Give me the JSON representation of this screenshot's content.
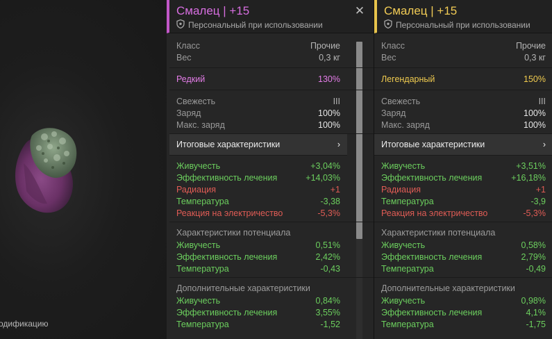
{
  "scene": {
    "label": "одификацию"
  },
  "left_panel": {
    "title": "Смалец | +15",
    "binding": "Персональный при использовании",
    "class_label": "Класс",
    "class_value": "Прочие",
    "weight_label": "Вес",
    "weight_value": "0,3 кг",
    "rarity_label": "Редкий",
    "rarity_value": "130%",
    "freshness_label": "Свежесть",
    "freshness_value": "III",
    "charge_label": "Заряд",
    "charge_value": "100%",
    "max_charge_label": "Макс. заряд",
    "max_charge_value": "100%",
    "final_stats_label": "Итоговые характеристики",
    "final_stats": [
      {
        "label": "Живучесть",
        "value": "+3,04%",
        "color": "green"
      },
      {
        "label": "Эффективность лечения",
        "value": "+14,03%",
        "color": "green"
      },
      {
        "label": "Радиация",
        "value": "+1",
        "color": "red"
      },
      {
        "label": "Температура",
        "value": "-3,38",
        "color": "green"
      },
      {
        "label": "Реакция на электричество",
        "value": "-5,3%",
        "color": "red"
      }
    ],
    "potential_title": "Характеристики потенциала",
    "potential_stats": [
      {
        "label": "Живучесть",
        "value": "0,51%"
      },
      {
        "label": "Эффективность лечения",
        "value": "2,42%"
      },
      {
        "label": "Температура",
        "value": "-0,43"
      }
    ],
    "extra_title": "Дополнительные характеристики",
    "extra_stats": [
      {
        "label": "Живучесть",
        "value": "0,84%"
      },
      {
        "label": "Эффективность лечения",
        "value": "3,55%"
      },
      {
        "label": "Температура",
        "value": "-1,52"
      }
    ]
  },
  "right_panel": {
    "title": "Смалец | +15",
    "binding": "Персональный при использовании",
    "class_label": "Класс",
    "class_value": "Прочие",
    "weight_label": "Вес",
    "weight_value": "0,3 кг",
    "rarity_label": "Легендарный",
    "rarity_value": "150%",
    "freshness_label": "Свежесть",
    "freshness_value": "III",
    "charge_label": "Заряд",
    "charge_value": "100%",
    "max_charge_label": "Макс. заряд",
    "max_charge_value": "100%",
    "final_stats_label": "Итоговые характеристики",
    "final_stats": [
      {
        "label": "Живучесть",
        "value": "+3,51%",
        "color": "green"
      },
      {
        "label": "Эффективность лечения",
        "value": "+16,18%",
        "color": "green"
      },
      {
        "label": "Радиация",
        "value": "+1",
        "color": "red"
      },
      {
        "label": "Температура",
        "value": "-3,9",
        "color": "green"
      },
      {
        "label": "Реакция на электричество",
        "value": "-5,3%",
        "color": "red"
      }
    ],
    "potential_title": "Характеристики потенциала",
    "potential_stats": [
      {
        "label": "Живучесть",
        "value": "0,58%"
      },
      {
        "label": "Эффективность лечения",
        "value": "2,79%"
      },
      {
        "label": "Температура",
        "value": "-0,49"
      }
    ],
    "extra_title": "Дополнительные характеристики",
    "extra_stats": [
      {
        "label": "Живучесть",
        "value": "0,98%"
      },
      {
        "label": "Эффективность лечения",
        "value": "4,1%"
      },
      {
        "label": "Температура",
        "value": "-1,75"
      }
    ]
  },
  "colors": {
    "rare": "#d76ee0",
    "legendary": "#f1cb55",
    "positive": "#6ccf5e",
    "negative": "#e05c55"
  },
  "icons": {
    "binding": "shield-icon",
    "close": "close-icon",
    "expand": "chevron-right-icon"
  }
}
